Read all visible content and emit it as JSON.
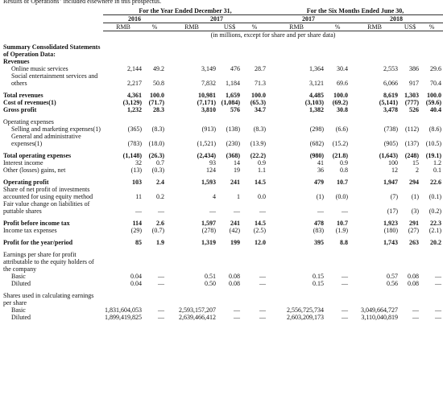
{
  "intro": "Results of Operations\" included elsewhere in this prospectus.",
  "table": {
    "groups": [
      "For the Year Ended December 31,",
      "For the Six Months Ended June 30,"
    ],
    "years": [
      "2016",
      "2017",
      "2017",
      "2018"
    ],
    "units": [
      "RMB",
      "%",
      "RMB",
      "US$",
      "%",
      "RMB",
      "%",
      "RMB",
      "US$",
      "%"
    ],
    "note": "(in millions, except for share and per share data)",
    "rows": [
      {
        "label": "Summary Consolidated Statements of Operation Data:",
        "bold": true
      },
      {
        "label": "Revenues",
        "bold": true
      },
      {
        "label": "Online music services",
        "indent": 1,
        "values": [
          "2,144",
          "49.2",
          "3,149",
          "476",
          "28.7",
          "1,364",
          "30.4",
          "2,553",
          "386",
          "29.6"
        ]
      },
      {
        "label": "Social entertainment services and others",
        "indent": 1,
        "values": [
          "2,217",
          "50.8",
          "7,832",
          "1,184",
          "71.3",
          "3,121",
          "69.6",
          "6,066",
          "917",
          "70.4"
        ]
      },
      {
        "label": "Total revenues",
        "bold": true,
        "values": [
          "4,361",
          "100.0",
          "10,981",
          "1,659",
          "100.0",
          "4,485",
          "100.0",
          "8,619",
          "1,303",
          "100.0"
        ]
      },
      {
        "label": "Cost of revenues(1)",
        "bold": true,
        "values": [
          "(3,129)",
          "(71.7)",
          "(7,171)",
          "(1,084)",
          "(65.3)",
          "(3,103)",
          "(69.2)",
          "(5,141)",
          "(777)",
          "(59.6)"
        ]
      },
      {
        "label": "Gross profit",
        "bold": true,
        "values": [
          "1,232",
          "28.3",
          "3,810",
          "576",
          "34.7",
          "1,382",
          "30.8",
          "3,478",
          "526",
          "40.4"
        ]
      },
      {
        "label": "Operating expenses"
      },
      {
        "label": "Selling and marketing expenses(1)",
        "indent": 1,
        "values": [
          "(365)",
          "(8.3)",
          "(913)",
          "(138)",
          "(8.3)",
          "(298)",
          "(6.6)",
          "(738)",
          "(112)",
          "(8.6)"
        ]
      },
      {
        "label": "General and administrative expenses(1)",
        "indent": 1,
        "values": [
          "(783)",
          "(18.0)",
          "(1,521)",
          "(230)",
          "(13.9)",
          "(682)",
          "(15.2)",
          "(905)",
          "(137)",
          "(10.5)"
        ]
      },
      {
        "label": "Total operating expenses",
        "bold": true,
        "values": [
          "(1,148)",
          "(26.3)",
          "(2,434)",
          "(368)",
          "(22.2)",
          "(980)",
          "(21.8)",
          "(1,643)",
          "(248)",
          "(19.1)"
        ]
      },
      {
        "label": "Interest income",
        "values": [
          "32",
          "0.7",
          "93",
          "14",
          "0.9",
          "41",
          "0.9",
          "100",
          "15",
          "1.2"
        ]
      },
      {
        "label": "Other (losses) gains, net",
        "values": [
          "(13)",
          "(0.3)",
          "124",
          "19",
          "1.1",
          "36",
          "0.8",
          "12",
          "2",
          "0.1"
        ]
      },
      {
        "label": "Operating profit",
        "bold": true,
        "values": [
          "103",
          "2.4",
          "1,593",
          "241",
          "14.5",
          "479",
          "10.7",
          "1,947",
          "294",
          "22.6"
        ]
      },
      {
        "label": "Share of net profit of investments accounted for using equity method",
        "values": [
          "11",
          "0.2",
          "4",
          "1",
          "0.0",
          "(1)",
          "(0.0)",
          "(7)",
          "(1)",
          "(0.1)"
        ]
      },
      {
        "label": "Fair value change on liabilities of puttable shares",
        "values": [
          "—",
          "—",
          "—",
          "—",
          "—",
          "—",
          "—",
          "(17)",
          "(3)",
          "(0.2)"
        ]
      },
      {
        "label": "Profit before income tax",
        "bold": true,
        "values": [
          "114",
          "2.6",
          "1,597",
          "241",
          "14.5",
          "478",
          "10.7",
          "1,923",
          "291",
          "22.3"
        ]
      },
      {
        "label": "Income tax expenses",
        "values": [
          "(29)",
          "(0.7)",
          "(278)",
          "(42)",
          "(2.5)",
          "(83)",
          "(1.9)",
          "(180)",
          "(27)",
          "(2.1)"
        ]
      },
      {
        "label": "Profit for the year/period",
        "bold": true,
        "values": [
          "85",
          "1.9",
          "1,319",
          "199",
          "12.0",
          "395",
          "8.8",
          "1,743",
          "263",
          "20.2"
        ]
      },
      {
        "label": "Earnings per share for profit attributable to the equity holders of the company"
      },
      {
        "label": "Basic",
        "indent": 1,
        "values": [
          "0.04",
          "—",
          "0.51",
          "0.08",
          "—",
          "0.15",
          "—",
          "0.57",
          "0.08",
          "—"
        ]
      },
      {
        "label": "Diluted",
        "indent": 1,
        "values": [
          "0.04",
          "—",
          "0.50",
          "0.08",
          "—",
          "0.15",
          "—",
          "0.56",
          "0.08",
          "—"
        ]
      },
      {
        "label": "Shares used in calculating earnings per share"
      },
      {
        "label": "Basic",
        "indent": 1,
        "values": [
          "1,831,604,053",
          "—",
          "2,593,157,207",
          "—",
          "—",
          "2,556,725,734",
          "—",
          "3,049,664,727",
          "—",
          "—"
        ]
      },
      {
        "label": "Diluted",
        "indent": 1,
        "values": [
          "1,899,419,825",
          "—",
          "2,639,466,412",
          "—",
          "—",
          "2,603,209,173",
          "—",
          "3,110,040,819",
          "—",
          "—"
        ]
      }
    ]
  }
}
